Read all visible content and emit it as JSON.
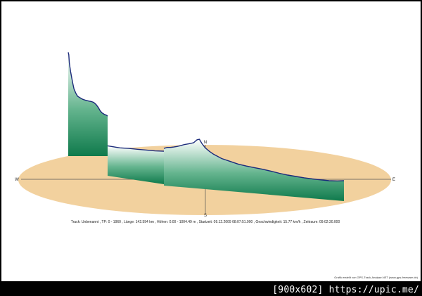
{
  "chart_data": {
    "type": "area",
    "title": "",
    "compass": {
      "north": "N",
      "south": "S",
      "west": "W",
      "east": "E"
    },
    "info_line": "Track: Unbenannt ,  TP: 0 - 1960 ,  Länge: 142.594 km ,  Höhen: 0.00 - 1004.49 m ,  Startzeit: 09.12.2009 08:07:51.000 ,  Geschwindigkeit: 15.77 km/h ,  Zeitraum: 09:02:30.000",
    "credit": "Grafik erstellt von GPS-Track-Analyse.NET (www.gps-freeware.de)",
    "track_points": [
      0,
      1960
    ],
    "elevation_range_m": [
      0.0,
      1004.49
    ],
    "segments": [
      {
        "elevation": [
          [
            0,
            1004
          ],
          [
            1,
            980
          ],
          [
            2,
            900
          ],
          [
            4,
            820
          ],
          [
            6,
            760
          ],
          [
            8,
            700
          ],
          [
            10,
            650
          ],
          [
            13,
            610
          ],
          [
            16,
            580
          ],
          [
            20,
            565
          ],
          [
            25,
            550
          ],
          [
            30,
            540
          ],
          [
            36,
            532
          ],
          [
            40,
            528
          ],
          [
            44,
            520
          ],
          [
            48,
            500
          ],
          [
            52,
            470
          ],
          [
            55,
            440
          ],
          [
            58,
            420
          ],
          [
            62,
            405
          ],
          [
            66,
            395
          ],
          [
            68,
            388
          ]
        ]
      },
      {
        "elevation": [
          [
            68,
            290
          ],
          [
            75,
            288
          ],
          [
            80,
            295
          ],
          [
            85,
            300
          ],
          [
            90,
            305
          ],
          [
            95,
            310
          ],
          [
            100,
            320
          ]
        ]
      },
      {
        "elevation": [
          [
            100,
            360
          ],
          [
            104,
            372
          ],
          [
            108,
            375
          ],
          [
            112,
            382
          ],
          [
            116,
            390
          ],
          [
            120,
            400
          ],
          [
            125,
            415
          ],
          [
            130,
            425
          ],
          [
            136,
            440
          ],
          [
            140,
            470
          ],
          [
            143,
            478
          ],
          [
            146,
            440
          ],
          [
            150,
            400
          ],
          [
            155,
            370
          ],
          [
            160,
            345
          ],
          [
            170,
            310
          ],
          [
            180,
            290
          ],
          [
            190,
            270
          ],
          [
            200,
            258
          ],
          [
            210,
            248
          ],
          [
            220,
            240
          ],
          [
            230,
            228
          ],
          [
            240,
            215
          ],
          [
            250,
            205
          ],
          [
            260,
            198
          ],
          [
            270,
            192
          ],
          [
            280,
            188
          ],
          [
            290,
            186
          ],
          [
            300,
            185
          ],
          [
            310,
            190
          ],
          [
            318,
            198
          ]
        ]
      }
    ]
  },
  "badge": {
    "size": "[900x602]",
    "url": "https://upic.me/"
  }
}
